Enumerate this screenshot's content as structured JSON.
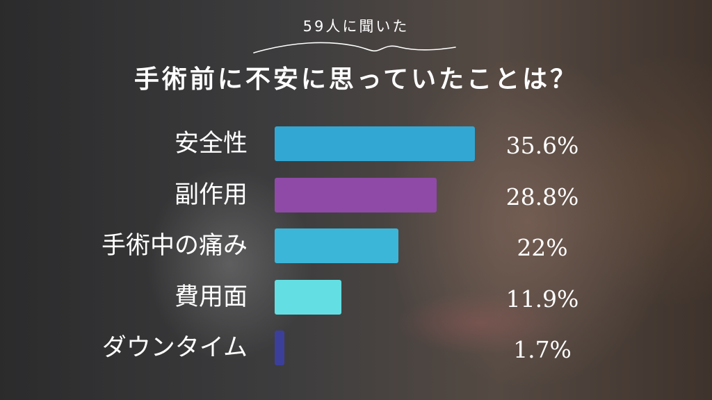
{
  "header": {
    "subtitle": "59人に聞いた",
    "title": "手術前に不安に思っていたことは？"
  },
  "chart_data": {
    "type": "bar",
    "orientation": "horizontal",
    "categories": [
      "安全性",
      "副作用",
      "手術中の痛み",
      "費用面",
      "ダウンタイム"
    ],
    "values": [
      35.6,
      28.8,
      22,
      11.9,
      1.7
    ],
    "value_labels": [
      "35.6%",
      "28.8%",
      "22%",
      "11.9%",
      "1.7%"
    ],
    "colors": [
      "#33a7d3",
      "#8e4aa6",
      "#3cb6d8",
      "#63dfe3",
      "#3c3f9a"
    ],
    "xlim": [
      0,
      35.6
    ],
    "grid": false,
    "legend": "none"
  }
}
